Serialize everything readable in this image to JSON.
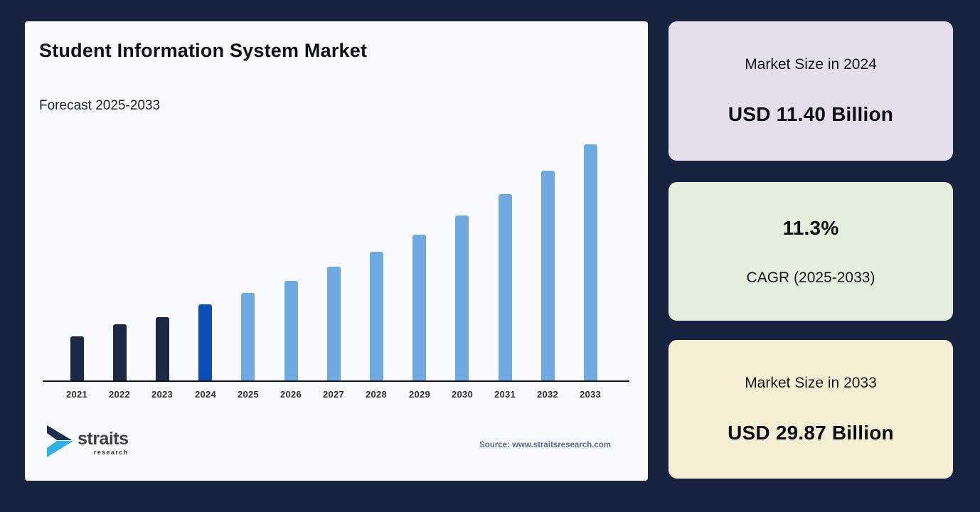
{
  "page": {
    "background": "#17233f"
  },
  "chart_panel": {
    "background": "#f8fafd",
    "title": "Student Information System Market",
    "subtitle": "Forecast 2025-2033",
    "source": "Source: www.straitsresearch.com",
    "logo": {
      "name": "straits",
      "sub": "research",
      "icon_navy": "#1d2d4e",
      "icon_cyan": "#2eb3e6"
    }
  },
  "chart_data": {
    "type": "bar",
    "title": "Student Information System Market",
    "xlabel": "",
    "ylabel": "USD Billion",
    "grid": false,
    "y_axis_shown": false,
    "categories": [
      "2021",
      "2022",
      "2023",
      "2024",
      "2025",
      "2026",
      "2027",
      "2028",
      "2029",
      "2030",
      "2031",
      "2032",
      "2033"
    ],
    "values": [
      7.7,
      9.1,
      9.9,
      11.4,
      12.69,
      14.12,
      15.72,
      17.49,
      19.47,
      21.67,
      24.12,
      26.85,
      29.87
    ],
    "bar_colors": [
      "#1b2947",
      "#1b2947",
      "#1b2947",
      "#0d4fb8",
      "#6fa9e2",
      "#6fa9e2",
      "#6fa9e2",
      "#6fa9e2",
      "#6fa9e2",
      "#6fa9e2",
      "#6fa9e2",
      "#6fa9e2",
      "#6fa9e2"
    ],
    "color_legend": {
      "historical_2021_2023": "#1b2947",
      "base_year_2024": "#0d4fb8",
      "forecast_2025_2033": "#6fa9e2"
    },
    "note": "2024 and 2033 values shown on cards; remaining values estimated from bar heights"
  },
  "cards": [
    {
      "label": "Market Size in 2024",
      "value": "USD 11.40 Billion",
      "background": "#e4deed"
    },
    {
      "value": "11.3%",
      "label": "CAGR (2025-2033)",
      "background": "#e3eedd"
    },
    {
      "label": "Market Size in 2033",
      "value": "USD 29.87 Billion",
      "background": "#f6efd4"
    }
  ]
}
